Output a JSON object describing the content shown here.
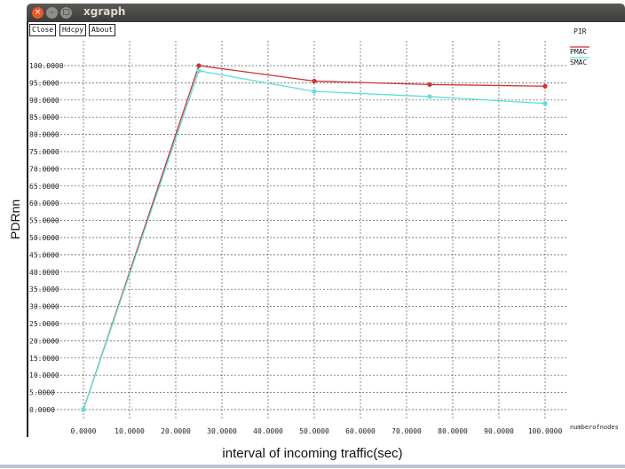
{
  "window": {
    "title": "xgraph",
    "buttons": [
      "Close",
      "Hdcpy",
      "About"
    ]
  },
  "chart_data": {
    "type": "line",
    "title": "PIR",
    "ylabel": "PDRnn",
    "xlabel": "interval of incoming traffic(sec)",
    "x_axis_end_label": "numberofnodes",
    "xlim": [
      0,
      100
    ],
    "ylim": [
      0,
      100
    ],
    "x_ticks": [
      0,
      10,
      20,
      30,
      40,
      50,
      60,
      70,
      80,
      90,
      100
    ],
    "x_tick_labels": [
      "0.0000",
      "10.0000",
      "20.0000",
      "30.0000",
      "40.0000",
      "50.0000",
      "60.0000",
      "70.0000",
      "80.0000",
      "90.0000",
      "100.0000"
    ],
    "y_ticks": [
      0,
      5,
      10,
      15,
      20,
      25,
      30,
      35,
      40,
      45,
      50,
      55,
      60,
      65,
      70,
      75,
      80,
      85,
      90,
      95,
      100
    ],
    "y_tick_labels": [
      "0.0000",
      "5.0000",
      "10.0000",
      "15.0000",
      "20.0000",
      "25.0000",
      "30.0000",
      "35.0000",
      "40.0000",
      "45.0000",
      "50.0000",
      "55.0000",
      "60.0000",
      "65.0000",
      "70.0000",
      "75.0000",
      "80.0000",
      "85.0000",
      "90.0000",
      "95.0000",
      "100.0000"
    ],
    "grid": true,
    "legend_position": "top-right",
    "series": [
      {
        "name": "PMAC",
        "color": "#d03030",
        "x": [
          0,
          25,
          50,
          75,
          100
        ],
        "y": [
          0,
          100,
          95.5,
          94.5,
          94
        ]
      },
      {
        "name": "SMAC",
        "color": "#5fe0dc",
        "x": [
          0,
          25,
          50,
          75,
          100
        ],
        "y": [
          0,
          98.5,
          92.5,
          91,
          89
        ]
      }
    ]
  }
}
